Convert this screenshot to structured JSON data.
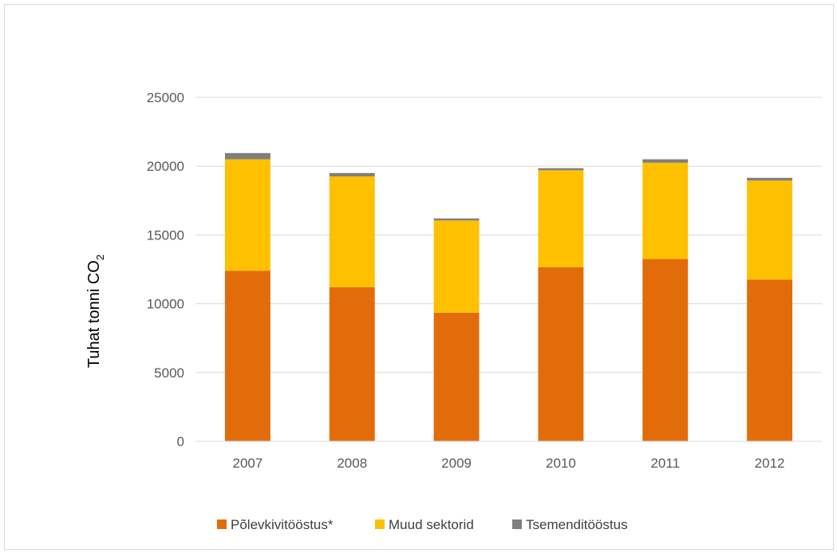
{
  "chart_data": {
    "type": "bar",
    "stacked": true,
    "categories": [
      "2007",
      "2008",
      "2009",
      "2010",
      "2011",
      "2012"
    ],
    "series": [
      {
        "name": "Põlevkivitööstus*",
        "color": "#E36C0A",
        "values": [
          12400,
          11200,
          9350,
          12650,
          13250,
          11750
        ]
      },
      {
        "name": "Muud sektorid",
        "color": "#FFC000",
        "values": [
          8100,
          8050,
          6700,
          7050,
          7000,
          7200
        ]
      },
      {
        "name": "Tsemenditööstus",
        "color": "#7F7F7F",
        "values": [
          450,
          250,
          150,
          150,
          250,
          200
        ]
      }
    ],
    "ylabel": "Tuhat tonni CO",
    "ylabel_subscript": "2",
    "ylim": [
      0,
      25000
    ],
    "yticks": [
      "0",
      "5000",
      "10000",
      "15000",
      "20000",
      "25000"
    ],
    "grid": true,
    "legend_position": "bottom"
  }
}
